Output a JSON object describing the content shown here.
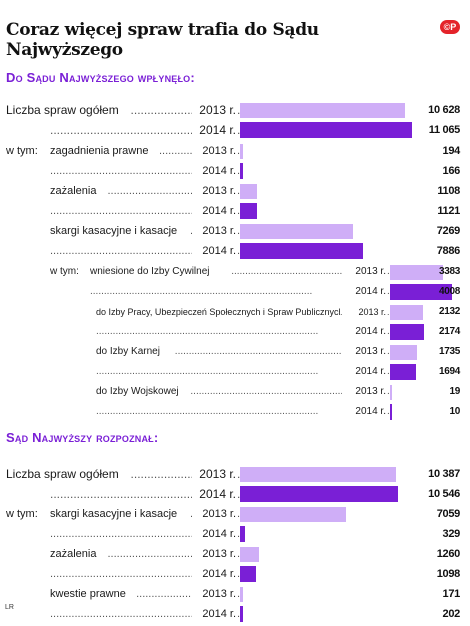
{
  "title": "Coraz więcej spraw trafia do Sądu Najwyższego",
  "logo": "©P",
  "source": "LR",
  "colors": {
    "y2013": "#cfaef7",
    "y2014": "#7a1fd6",
    "heading": "#7a1fd6"
  },
  "chart_data": {
    "type": "bar",
    "orientation": "horizontal",
    "panels": [
      {
        "heading": "Do Sądu Najwyższego wpłynęło:",
        "rows": [
          {
            "label": "Liczba spraw ogółem",
            "year": "2013 r.",
            "value": 10628,
            "display": "10 628"
          },
          {
            "label": "",
            "year": "2014 r.",
            "value": 11065,
            "display": "11 065"
          },
          {
            "prefix": "w tym:",
            "label": "zagadnienia prawne",
            "year": "2013 r.",
            "value": 194,
            "display": "194"
          },
          {
            "label": "",
            "year": "2014 r.",
            "value": 166,
            "display": "166"
          },
          {
            "label": "zażalenia",
            "year": "2013 r.",
            "value": 1108,
            "display": "1108"
          },
          {
            "label": "",
            "year": "2014 r.",
            "value": 1121,
            "display": "1121"
          },
          {
            "label": "skargi kasacyjne i kasacje",
            "year": "2013 r.",
            "value": 7269,
            "display": "7269"
          },
          {
            "label": "",
            "year": "2014 r.",
            "value": 7886,
            "display": "7886"
          },
          {
            "prefix": "w tym:",
            "label": "wniesione do Izby Cywilnej",
            "year": "2013 r.",
            "value": 3383,
            "display": "3383"
          },
          {
            "label": "",
            "year": "2014 r.",
            "value": 4008,
            "display": "4008"
          },
          {
            "label": "do Izby Pracy, Ubezpieczeń Społecznych i Spraw Publicznych",
            "year": "2013 r.",
            "value": 2132,
            "display": "2132"
          },
          {
            "label": "",
            "year": "2014 r.",
            "value": 2174,
            "display": "2174"
          },
          {
            "label": "do Izby Karnej",
            "year": "2013 r.",
            "value": 1735,
            "display": "1735"
          },
          {
            "label": "",
            "year": "2014 r.",
            "value": 1694,
            "display": "1694"
          },
          {
            "label": "do Izby Wojskowej",
            "year": "2013 r.",
            "value": 19,
            "display": "19"
          },
          {
            "label": "",
            "year": "2014 r.",
            "value": 10,
            "display": "10"
          }
        ]
      },
      {
        "heading": "Sąd Najwyższy rozpoznał:",
        "rows": [
          {
            "label": "Liczba spraw ogółem",
            "year": "2013 r.",
            "value": 10387,
            "display": "10 387"
          },
          {
            "label": "",
            "year": "2014 r.",
            "value": 10546,
            "display": "10 546"
          },
          {
            "prefix": "w tym:",
            "label": "skargi kasacyjne i kasacje",
            "year": "2013 r.",
            "value": 7059,
            "display": "7059"
          },
          {
            "label": "",
            "year": "2014 r.",
            "value": 329,
            "display": "329"
          },
          {
            "label": "zażalenia",
            "year": "2013 r.",
            "value": 1260,
            "display": "1260"
          },
          {
            "label": "",
            "year": "2014 r.",
            "value": 1098,
            "display": "1098"
          },
          {
            "label": "kwestie prawne",
            "year": "2013 r.",
            "value": 171,
            "display": "171"
          },
          {
            "label": "",
            "year": "2014 r.",
            "value": 202,
            "display": "202"
          }
        ]
      }
    ]
  }
}
